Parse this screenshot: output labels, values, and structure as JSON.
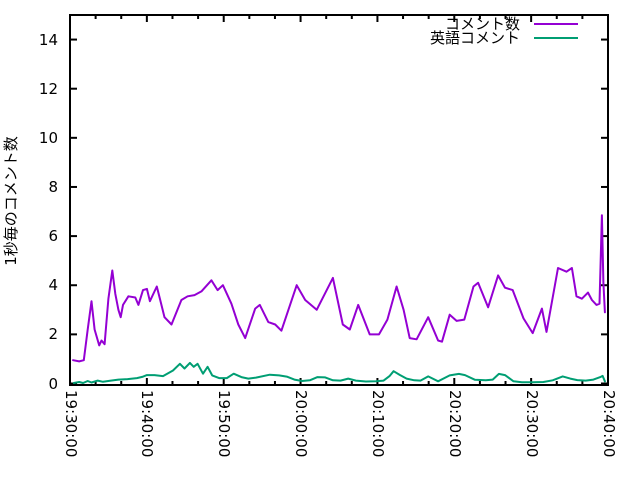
{
  "chart_data": {
    "type": "line",
    "title": "",
    "xlabel": "",
    "ylabel": "1秒毎のコメント数",
    "background_color": "#ffffff",
    "border_color": "#000000",
    "grid": false,
    "legend_position": "top-right-inside",
    "ylim": [
      0,
      15
    ],
    "y_tick_labels": [
      "0",
      "2",
      "4",
      "6",
      "8",
      "10",
      "12",
      "14"
    ],
    "y_tick_values": [
      0,
      2,
      4,
      6,
      8,
      10,
      12,
      14
    ],
    "x_range_seconds": [
      0,
      4200
    ],
    "x_major_tick_seconds": [
      0,
      600,
      1200,
      1800,
      2400,
      3000,
      3600,
      4200
    ],
    "x_tick_labels": [
      "19:30:00",
      "19:40:00",
      "19:50:00",
      "20:00:00",
      "20:10:00",
      "20:20:00",
      "20:30:00",
      "20:40:00"
    ],
    "x_minor_tick_step_seconds": 200,
    "series": [
      {
        "name": "コメント数",
        "color": "#9400d3",
        "points_min_val": [
          [
            0.4,
            0.95
          ],
          [
            1.2,
            0.9
          ],
          [
            1.8,
            0.95
          ],
          [
            2.3,
            2.2
          ],
          [
            2.8,
            3.35
          ],
          [
            3.2,
            2.2
          ],
          [
            3.8,
            1.55
          ],
          [
            4.1,
            1.75
          ],
          [
            4.5,
            1.6
          ],
          [
            5.0,
            3.45
          ],
          [
            5.5,
            4.6
          ],
          [
            5.9,
            3.65
          ],
          [
            6.3,
            3.0
          ],
          [
            6.6,
            2.7
          ],
          [
            6.9,
            3.2
          ],
          [
            7.6,
            3.55
          ],
          [
            8.5,
            3.5
          ],
          [
            8.9,
            3.2
          ],
          [
            9.5,
            3.8
          ],
          [
            10.0,
            3.85
          ],
          [
            10.4,
            3.35
          ],
          [
            11.3,
            3.95
          ],
          [
            11.7,
            3.45
          ],
          [
            12.3,
            2.7
          ],
          [
            13.2,
            2.4
          ],
          [
            14.5,
            3.4
          ],
          [
            15.3,
            3.55
          ],
          [
            16.2,
            3.6
          ],
          [
            17.1,
            3.75
          ],
          [
            18.4,
            4.2
          ],
          [
            19.2,
            3.8
          ],
          [
            19.9,
            4.0
          ],
          [
            21.0,
            3.25
          ],
          [
            21.9,
            2.4
          ],
          [
            22.8,
            1.85
          ],
          [
            24.1,
            3.05
          ],
          [
            24.7,
            3.2
          ],
          [
            25.8,
            2.5
          ],
          [
            26.7,
            2.4
          ],
          [
            27.5,
            2.15
          ],
          [
            29.5,
            4.0
          ],
          [
            30.6,
            3.4
          ],
          [
            32.1,
            3.0
          ],
          [
            34.2,
            4.3
          ],
          [
            35.5,
            2.4
          ],
          [
            36.4,
            2.2
          ],
          [
            37.5,
            3.2
          ],
          [
            39.0,
            2.0
          ],
          [
            40.2,
            2.0
          ],
          [
            41.3,
            2.6
          ],
          [
            42.5,
            3.95
          ],
          [
            43.4,
            3.0
          ],
          [
            44.2,
            1.85
          ],
          [
            45.1,
            1.8
          ],
          [
            46.6,
            2.7
          ],
          [
            47.9,
            1.75
          ],
          [
            48.4,
            1.7
          ],
          [
            49.4,
            2.8
          ],
          [
            50.3,
            2.55
          ],
          [
            51.3,
            2.6
          ],
          [
            52.5,
            3.95
          ],
          [
            53.1,
            4.1
          ],
          [
            54.4,
            3.1
          ],
          [
            55.7,
            4.4
          ],
          [
            56.6,
            3.9
          ],
          [
            57.6,
            3.8
          ],
          [
            59.0,
            2.65
          ],
          [
            60.2,
            2.05
          ],
          [
            61.4,
            3.05
          ],
          [
            62.0,
            2.1
          ],
          [
            63.5,
            4.7
          ],
          [
            64.6,
            4.55
          ],
          [
            65.3,
            4.7
          ],
          [
            65.9,
            3.55
          ],
          [
            66.6,
            3.45
          ],
          [
            67.4,
            3.7
          ],
          [
            67.9,
            3.4
          ],
          [
            68.5,
            3.2
          ],
          [
            68.9,
            3.25
          ],
          [
            69.2,
            6.85
          ],
          [
            69.4,
            4.1
          ],
          [
            69.6,
            2.9
          ]
        ]
      },
      {
        "name": "英語コメント",
        "color": "#009e73",
        "points_min_val": [
          [
            0.5,
            0.02
          ],
          [
            1.2,
            0.06
          ],
          [
            1.7,
            0.02
          ],
          [
            2.3,
            0.1
          ],
          [
            2.8,
            0.04
          ],
          [
            3.6,
            0.12
          ],
          [
            4.3,
            0.07
          ],
          [
            5.2,
            0.11
          ],
          [
            6.3,
            0.16
          ],
          [
            7.5,
            0.18
          ],
          [
            8.7,
            0.22
          ],
          [
            9.4,
            0.27
          ],
          [
            10.0,
            0.34
          ],
          [
            11.0,
            0.34
          ],
          [
            12.1,
            0.3
          ],
          [
            13.4,
            0.53
          ],
          [
            14.3,
            0.8
          ],
          [
            14.9,
            0.61
          ],
          [
            15.6,
            0.84
          ],
          [
            16.1,
            0.68
          ],
          [
            16.6,
            0.8
          ],
          [
            17.3,
            0.4
          ],
          [
            17.9,
            0.68
          ],
          [
            18.5,
            0.33
          ],
          [
            19.4,
            0.22
          ],
          [
            20.4,
            0.22
          ],
          [
            21.3,
            0.4
          ],
          [
            22.3,
            0.26
          ],
          [
            23.2,
            0.2
          ],
          [
            24.2,
            0.24
          ],
          [
            26.0,
            0.36
          ],
          [
            27.2,
            0.33
          ],
          [
            28.2,
            0.28
          ],
          [
            29.2,
            0.16
          ],
          [
            30.2,
            0.1
          ],
          [
            31.2,
            0.13
          ],
          [
            32.2,
            0.26
          ],
          [
            33.2,
            0.25
          ],
          [
            34.2,
            0.13
          ],
          [
            35.2,
            0.12
          ],
          [
            36.2,
            0.2
          ],
          [
            37.2,
            0.12
          ],
          [
            38.5,
            0.08
          ],
          [
            39.8,
            0.09
          ],
          [
            40.8,
            0.12
          ],
          [
            41.6,
            0.31
          ],
          [
            42.1,
            0.5
          ],
          [
            42.9,
            0.35
          ],
          [
            43.8,
            0.2
          ],
          [
            44.8,
            0.13
          ],
          [
            45.6,
            0.12
          ],
          [
            46.6,
            0.29
          ],
          [
            47.9,
            0.09
          ],
          [
            49.4,
            0.33
          ],
          [
            50.6,
            0.39
          ],
          [
            51.4,
            0.34
          ],
          [
            52.7,
            0.15
          ],
          [
            54.1,
            0.13
          ],
          [
            55.0,
            0.16
          ],
          [
            55.8,
            0.39
          ],
          [
            56.6,
            0.34
          ],
          [
            57.7,
            0.09
          ],
          [
            58.8,
            0.05
          ],
          [
            60.2,
            0.05
          ],
          [
            61.6,
            0.06
          ],
          [
            62.8,
            0.13
          ],
          [
            64.1,
            0.29
          ],
          [
            65.1,
            0.2
          ],
          [
            66.0,
            0.14
          ],
          [
            67.1,
            0.12
          ],
          [
            68.1,
            0.16
          ],
          [
            69.0,
            0.26
          ],
          [
            69.3,
            0.31
          ],
          [
            69.6,
            0.09
          ]
        ]
      }
    ]
  }
}
